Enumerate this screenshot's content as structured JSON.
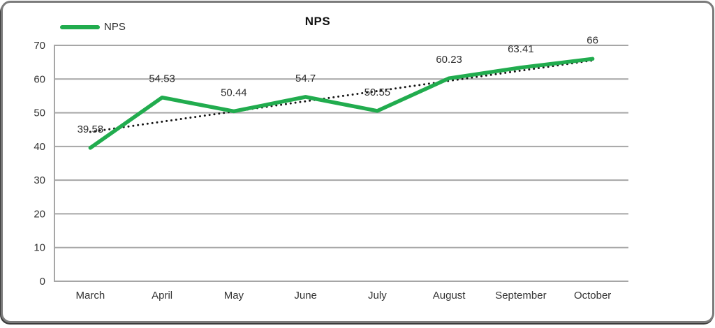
{
  "title": "NPS",
  "legend": {
    "label": "NPS"
  },
  "colors": {
    "series_green": "#21ac4e",
    "trendline": "#151515",
    "gridline": "#a6a6a6",
    "axis_text": "#333333",
    "card_border": "#7b7b7b",
    "background": "#ffffff"
  },
  "chart_data": {
    "type": "line",
    "title": "NPS",
    "categories": [
      "March",
      "April",
      "May",
      "June",
      "July",
      "August",
      "September",
      "October"
    ],
    "series": [
      {
        "name": "NPS",
        "values": [
          39.58,
          54.53,
          50.44,
          54.7,
          50.55,
          60.23,
          63.41,
          66
        ]
      }
    ],
    "data_labels": [
      "39.58",
      "54.53",
      "50.44",
      "54.7",
      "50.55",
      "60.23",
      "63.41",
      "66"
    ],
    "ylim": [
      0,
      70
    ],
    "ytick_interval": 10,
    "ytick_labels": [
      "0",
      "10",
      "20",
      "30",
      "40",
      "50",
      "60",
      "70"
    ],
    "grid": true,
    "legend_position": "top-left",
    "trendline": {
      "type": "linear",
      "style": "dotted"
    }
  }
}
